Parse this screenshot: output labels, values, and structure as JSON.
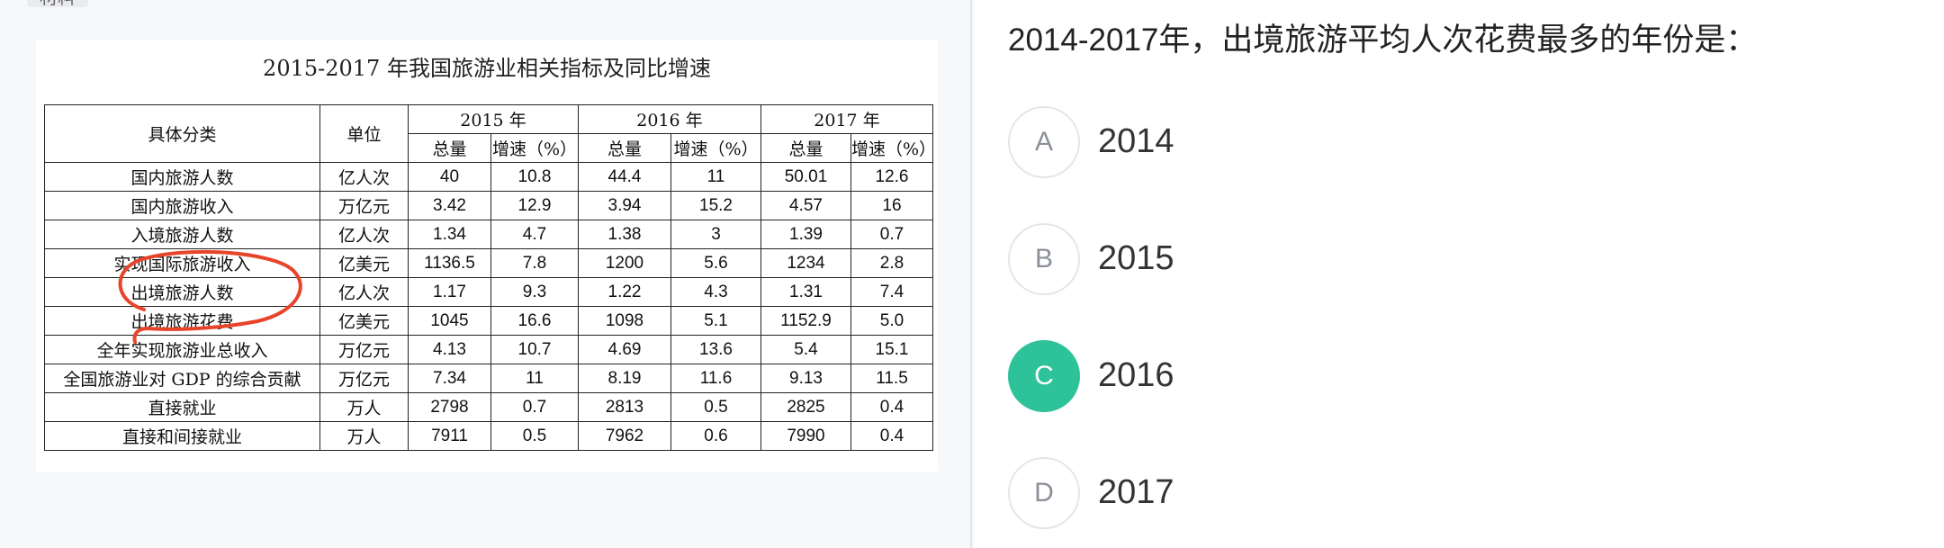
{
  "material": {
    "tab_label": "材料",
    "table_title": "2015-2017 年我国旅游业相关指标及同比增速",
    "header": {
      "category": "具体分类",
      "unit": "单位",
      "years": [
        "2015 年",
        "2016 年",
        "2017 年"
      ],
      "total": "总量",
      "growth": "增速（%）"
    },
    "rows": [
      {
        "category": "国内旅游人数",
        "unit": "亿人次",
        "v": [
          "40",
          "10.8",
          "44.4",
          "11",
          "50.01",
          "12.6"
        ]
      },
      {
        "category": "国内旅游收入",
        "unit": "万亿元",
        "v": [
          "3.42",
          "12.9",
          "3.94",
          "15.2",
          "4.57",
          "16"
        ]
      },
      {
        "category": "入境旅游人数",
        "unit": "亿人次",
        "v": [
          "1.34",
          "4.7",
          "1.38",
          "3",
          "1.39",
          "0.7"
        ]
      },
      {
        "category": "实现国际旅游收入",
        "unit": "亿美元",
        "v": [
          "1136.5",
          "7.8",
          "1200",
          "5.6",
          "1234",
          "2.8"
        ]
      },
      {
        "category": "出境旅游人数",
        "unit": "亿人次",
        "v": [
          "1.17",
          "9.3",
          "1.22",
          "4.3",
          "1.31",
          "7.4"
        ]
      },
      {
        "category": "出境旅游花费",
        "unit": "亿美元",
        "v": [
          "1045",
          "16.6",
          "1098",
          "5.1",
          "1152.9",
          "5.0"
        ]
      },
      {
        "category": "全年实现旅游业总收入",
        "unit": "万亿元",
        "v": [
          "4.13",
          "10.7",
          "4.69",
          "13.6",
          "5.4",
          "15.1"
        ]
      },
      {
        "category": "全国旅游业对 GDP 的综合贡献",
        "unit": "万亿元",
        "v": [
          "7.34",
          "11",
          "8.19",
          "11.6",
          "9.13",
          "11.5"
        ]
      },
      {
        "category": "直接就业",
        "unit": "万人",
        "v": [
          "2798",
          "0.7",
          "2813",
          "0.5",
          "2825",
          "0.4"
        ]
      },
      {
        "category": "直接和间接就业",
        "unit": "万人",
        "v": [
          "7911",
          "0.5",
          "7962",
          "0.6",
          "7990",
          "0.4"
        ]
      }
    ],
    "annotation_color": "#e8442a"
  },
  "question": {
    "text": "2014-2017年，出境旅游平均人次花费最多的年份是：",
    "options": [
      {
        "letter": "A",
        "text": "2014",
        "selected": false
      },
      {
        "letter": "B",
        "text": "2015",
        "selected": false
      },
      {
        "letter": "C",
        "text": "2016",
        "selected": true
      },
      {
        "letter": "D",
        "text": "2017",
        "selected": false
      }
    ],
    "selected_color": "#2ec29a"
  }
}
